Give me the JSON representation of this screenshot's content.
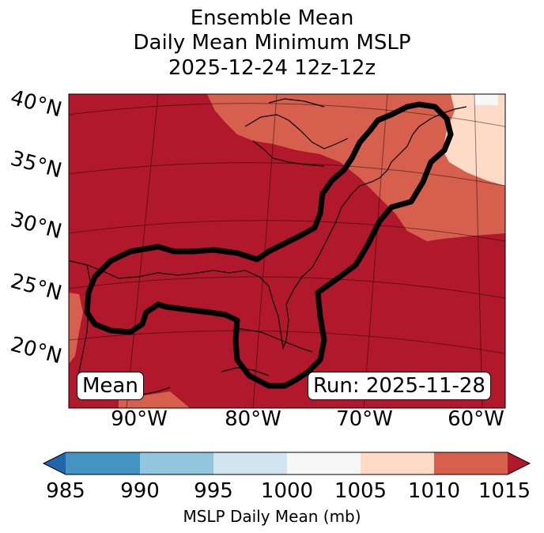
{
  "title": {
    "line1": "Ensemble Mean",
    "line2": "Daily Mean Minimum MSLP",
    "line3": "2025-12-24 12z-12z"
  },
  "lat_labels": [
    "40°N",
    "35°N",
    "30°N",
    "25°N",
    "20°N"
  ],
  "lon_labels": [
    "90°W",
    "80°W",
    "70°W",
    "60°W"
  ],
  "annotations": {
    "mean": "Mean",
    "run": "Run: 2025-11-28"
  },
  "colorbar": {
    "label": "MSLP Daily Mean (mb)",
    "ticks": [
      "985",
      "990",
      "995",
      "1000",
      "1005",
      "1010",
      "1015"
    ],
    "colors": [
      "#2166ac",
      "#4393c3",
      "#92c5de",
      "#d1e5f0",
      "#f7f7f7",
      "#fddbc7",
      "#d6604d",
      "#b2182b"
    ]
  }
}
